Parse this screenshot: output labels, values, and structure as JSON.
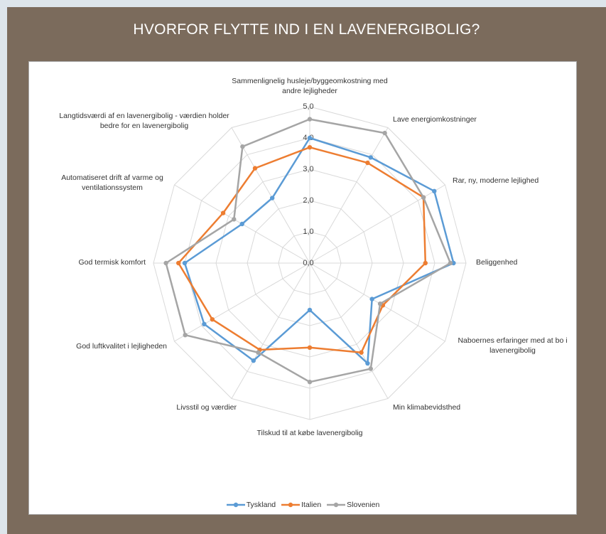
{
  "chart_data": {
    "type": "radar",
    "title": "HVORFOR FLYTTE IND I EN LAVENERGIBOLIG?",
    "categories": [
      "Sammenlignelig husleje/byggeomkostning med andre lejligheder",
      "Lave energiomkostninger",
      "Rar, ny, moderne lejlighed",
      "Beliggenhed",
      "Naboernes erfaringer med at bo i lavenergibolig",
      "Min klimabevidsthed",
      "Tilskud til at købe lavenergibolig",
      "Livsstil og værdier",
      "God luftkvalitet i lejligheden",
      "God termisk komfort",
      "Automatiseret drift af varme og ventilationssystem",
      "Langtidsværdi af en lavenergibolig - værdien holder bedre for en lavenergibolig"
    ],
    "series": [
      {
        "name": "Tyskland",
        "color": "#5b9bd5",
        "values": [
          4.0,
          3.9,
          4.6,
          4.6,
          2.3,
          3.7,
          1.5,
          3.6,
          3.9,
          4.0,
          2.5,
          2.4
        ]
      },
      {
        "name": "Italien",
        "color": "#ed7d31",
        "values": [
          3.7,
          3.7,
          4.2,
          3.7,
          2.7,
          3.3,
          2.7,
          3.2,
          3.6,
          4.2,
          3.2,
          3.5
        ]
      },
      {
        "name": "Slovenien",
        "color": "#a5a5a5",
        "values": [
          4.6,
          4.8,
          4.2,
          4.5,
          2.6,
          3.9,
          3.8,
          3.3,
          4.6,
          4.6,
          2.8,
          4.3
        ]
      }
    ],
    "rlim": [
      0,
      5
    ],
    "rticks": [
      {
        "value": 0,
        "label": "0,0"
      },
      {
        "value": 1,
        "label": "1,0"
      },
      {
        "value": 2,
        "label": "2,0"
      },
      {
        "value": 3,
        "label": "3,0"
      },
      {
        "value": 4,
        "label": "4,0"
      },
      {
        "value": 5,
        "label": "5,0"
      }
    ],
    "grid": true,
    "legend": "bottom"
  }
}
